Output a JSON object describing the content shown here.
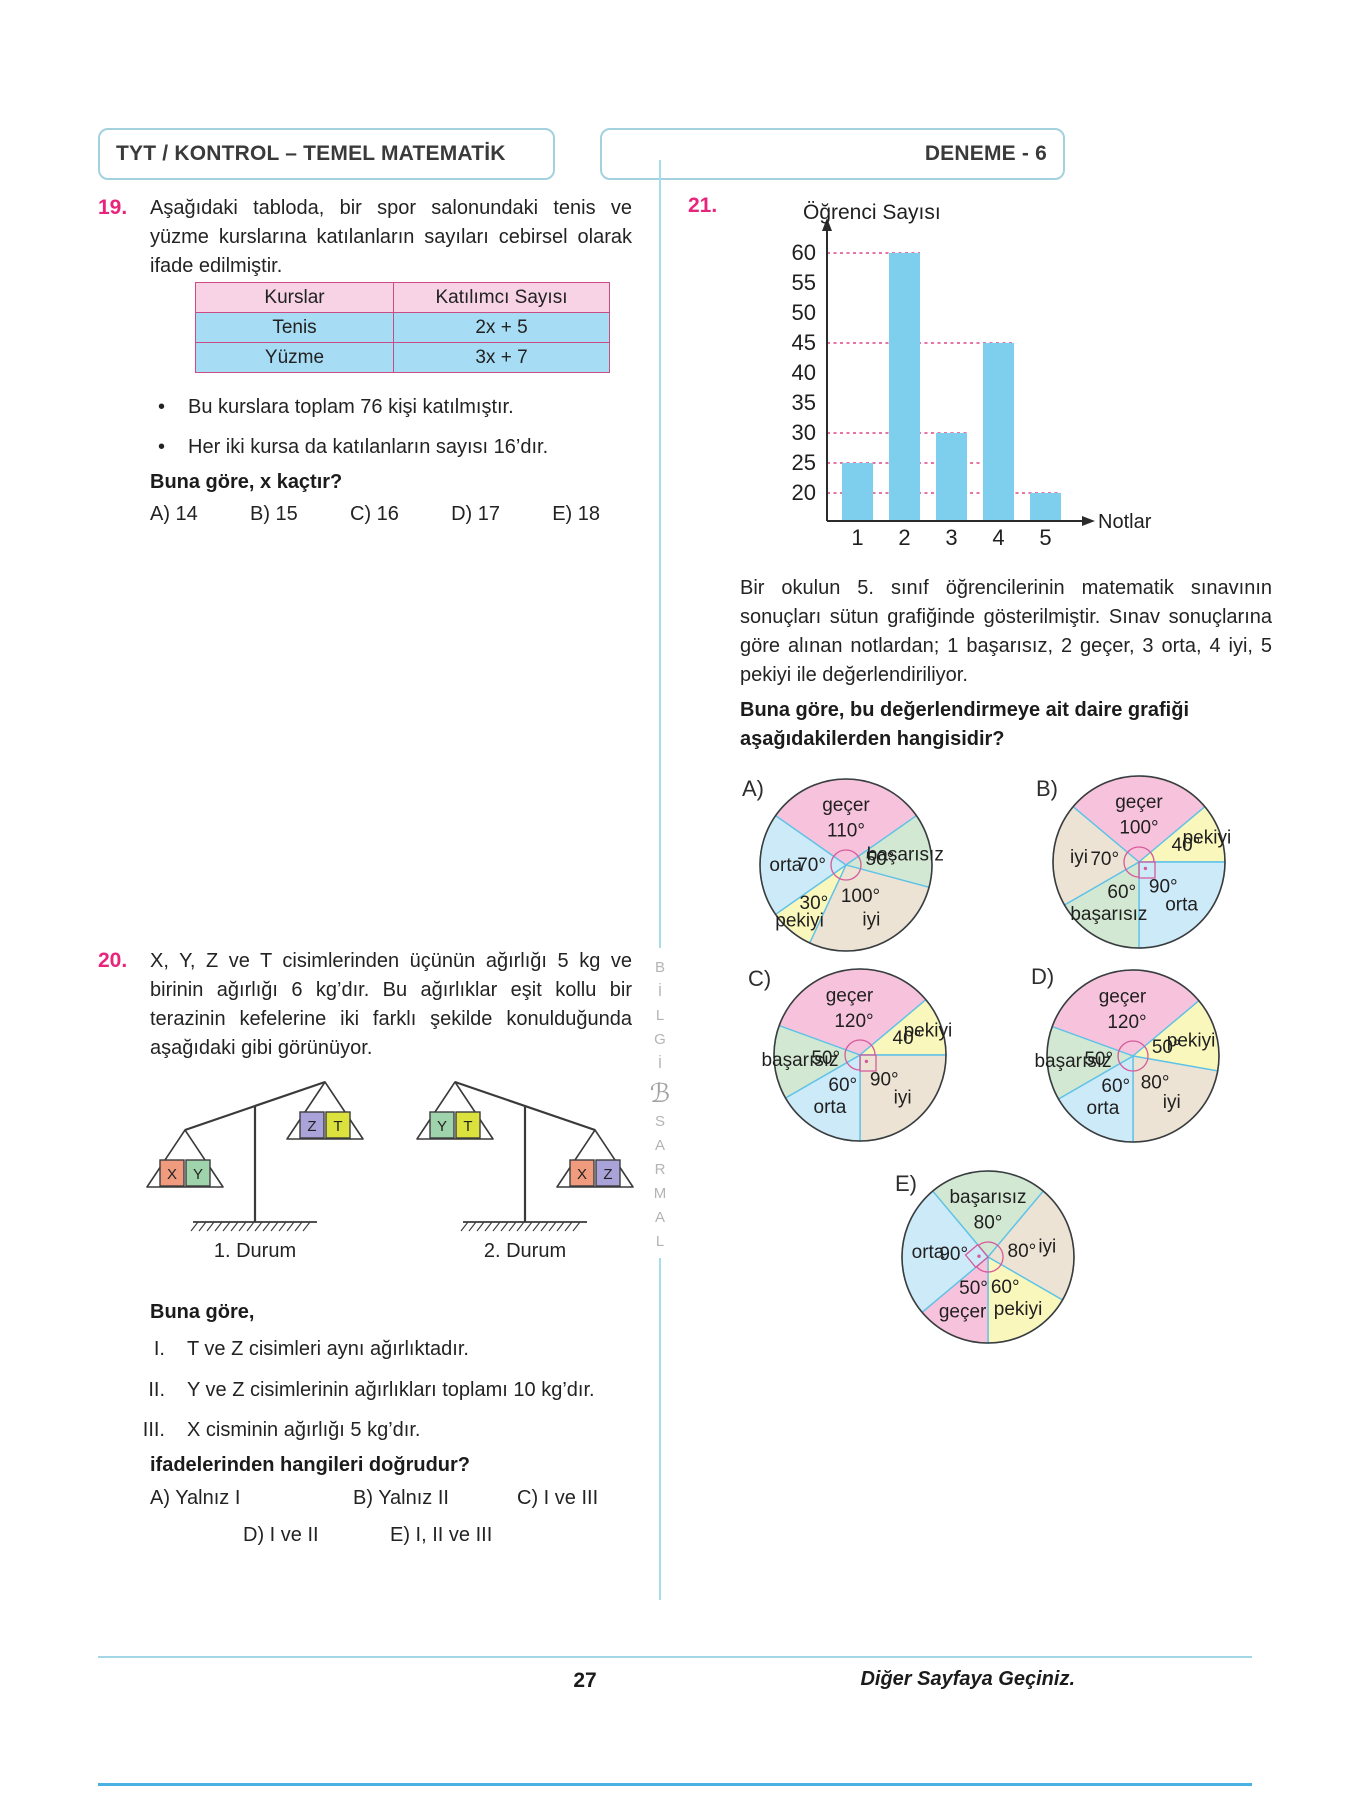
{
  "page": {
    "header_left": "TYT / KONTROL – TEMEL MATEMATİK",
    "header_right": "DENEME - 6",
    "footer_page": "27",
    "footer_note": "Diğer Sayfaya Geçiniz.",
    "bullet_glyph": "•",
    "watermark_letters": [
      "B",
      "İ",
      "L",
      "G",
      "İ",
      "ℬ",
      "S",
      "A",
      "R",
      "M",
      "A",
      "L"
    ]
  },
  "q19": {
    "number": "19.",
    "text": "Aşağıdaki tabloda, bir spor salonundaki tenis ve yüzme kurslarına katılanların sayıları cebirsel olarak ifade edilmiştir.",
    "table": {
      "headers": [
        "Kurslar",
        "Katılımcı Sayısı"
      ],
      "rows": [
        [
          "Tenis",
          "2x + 5"
        ],
        [
          "Yüzme",
          "3x + 7"
        ]
      ]
    },
    "bullets": [
      "Bu kurslara toplam 76 kişi katılmıştır.",
      "Her iki kursa da katılanların sayısı 16’dır."
    ],
    "prompt": "Buna göre, x kaçtır?",
    "options": [
      "A) 14",
      "B) 15",
      "C) 16",
      "D) 17",
      "E) 18"
    ]
  },
  "q20": {
    "number": "20.",
    "text": "X, Y, Z ve T cisimlerinden üçünün ağırlığı 5 kg ve birinin ağırlığı 6 kg’dır. Bu ağırlıklar eşit kollu bir terazinin kefelerine iki farklı şekilde konulduğunda aşağıdaki gibi görünüyor.",
    "box_colors": {
      "X": "#f09a7e",
      "Y": "#9fd3ab",
      "Z": "#a9a3d9",
      "T": "#dce23d"
    },
    "scales": [
      {
        "label": "1. Durum",
        "down": "left",
        "left_boxes": [
          "X",
          "Y"
        ],
        "right_boxes": [
          "Z",
          "T"
        ]
      },
      {
        "label": "2. Durum",
        "down": "right",
        "left_boxes": [
          "Y",
          "T"
        ],
        "right_boxes": [
          "X",
          "Z"
        ]
      }
    ],
    "intro": "Buna göre,",
    "statements": [
      {
        "roman": "I.",
        "text": "T ve Z cisimleri aynı ağırlıktadır."
      },
      {
        "roman": "II.",
        "text": "Y ve Z cisimlerinin ağırlıkları toplamı 10 kg’dır."
      },
      {
        "roman": "III.",
        "text": "X cisminin ağırlığı 5 kg’dır."
      }
    ],
    "prompt": "ifadelerinden hangileri doğrudur?",
    "options": [
      "A) Yalnız I",
      "B) Yalnız II",
      "C) I ve III",
      "D) I ve II",
      "E) I, II ve III"
    ]
  },
  "q21": {
    "number": "21.",
    "text": "Bir okulun 5. sınıf öğrencilerinin matematik sınavının sonuçları sütun grafiğinde gösterilmiştir. Sınav sonuçlarına göre alınan notlardan; 1 başarısız, 2 geçer, 3 orta, 4 iyi, 5 pekiyi ile değerlendiriliyor.",
    "prompt": "Buna göre, bu değerlendirmeye ait daire grafiği aşağıdakilerden hangisidir?"
  },
  "chart_data": [
    {
      "type": "bar",
      "title": "Öğrenci Sayısı",
      "xlabel": "Notlar",
      "categories": [
        "1",
        "2",
        "3",
        "4",
        "5"
      ],
      "values": [
        25,
        60,
        30,
        45,
        20
      ],
      "yticks": [
        20,
        25,
        30,
        35,
        40,
        45,
        50,
        55,
        60
      ],
      "ylim": [
        15,
        65
      ],
      "grid": false,
      "bar_color": "#7ecfee",
      "guide_color": "#e0458a",
      "axis_color": "#2b2b2b",
      "guides": [
        {
          "level": 60,
          "to_bar": 2
        },
        {
          "level": 45,
          "to_bar": 4
        },
        {
          "level": 30,
          "to_bar": 3
        },
        {
          "level": 25,
          "to_bar": 4
        },
        {
          "level": 20,
          "to_bar": 5
        }
      ]
    },
    {
      "type": "pie",
      "option": "A)",
      "start_deg": -55,
      "slices": [
        {
          "label": "geçer",
          "deg": 110,
          "color": "#f7c3dc"
        },
        {
          "label": "başarısız",
          "deg": 50,
          "color": "#d3e8d3"
        },
        {
          "label": "iyi",
          "deg": 100,
          "color": "#ece3d4"
        },
        {
          "label": "pekiyi",
          "deg": 30,
          "color": "#faf7bd"
        },
        {
          "label": "orta",
          "deg": 70,
          "color": "#cdeaf8"
        }
      ]
    },
    {
      "type": "pie",
      "option": "B)",
      "start_deg": -50,
      "slices": [
        {
          "label": "geçer",
          "deg": 100,
          "color": "#f7c3dc"
        },
        {
          "label": "pekiyi",
          "deg": 40,
          "color": "#faf7bd"
        },
        {
          "label": "orta",
          "deg": 90,
          "color": "#cdeaf8"
        },
        {
          "label": "başarısız",
          "deg": 60,
          "color": "#d3e8d3"
        },
        {
          "label": "iyi",
          "deg": 70,
          "color": "#ece3d4"
        }
      ]
    },
    {
      "type": "pie",
      "option": "C)",
      "start_deg": -70,
      "slices": [
        {
          "label": "geçer",
          "deg": 120,
          "color": "#f7c3dc"
        },
        {
          "label": "pekiyi",
          "deg": 40,
          "color": "#faf7bd"
        },
        {
          "label": "iyi",
          "deg": 90,
          "color": "#ece3d4"
        },
        {
          "label": "orta",
          "deg": 60,
          "color": "#cdeaf8"
        },
        {
          "label": "başarısız",
          "deg": 50,
          "color": "#d3e8d3"
        }
      ]
    },
    {
      "type": "pie",
      "option": "D)",
      "start_deg": -70,
      "slices": [
        {
          "label": "geçer",
          "deg": 120,
          "color": "#f7c3dc"
        },
        {
          "label": "pekiyi",
          "deg": 50,
          "color": "#faf7bd"
        },
        {
          "label": "iyi",
          "deg": 80,
          "color": "#ece3d4"
        },
        {
          "label": "orta",
          "deg": 60,
          "color": "#cdeaf8"
        },
        {
          "label": "başarısız",
          "deg": 50,
          "color": "#d3e8d3"
        }
      ]
    },
    {
      "type": "pie",
      "option": "E)",
      "start_deg": -40,
      "slices": [
        {
          "label": "başarısız",
          "deg": 80,
          "color": "#d3e8d3"
        },
        {
          "label": "iyi",
          "deg": 80,
          "color": "#ece3d4"
        },
        {
          "label": "pekiyi",
          "deg": 60,
          "color": "#faf7bd"
        },
        {
          "label": "geçer",
          "deg": 50,
          "color": "#f7c3dc"
        },
        {
          "label": "orta",
          "deg": 90,
          "color": "#cdeaf8"
        }
      ]
    }
  ]
}
